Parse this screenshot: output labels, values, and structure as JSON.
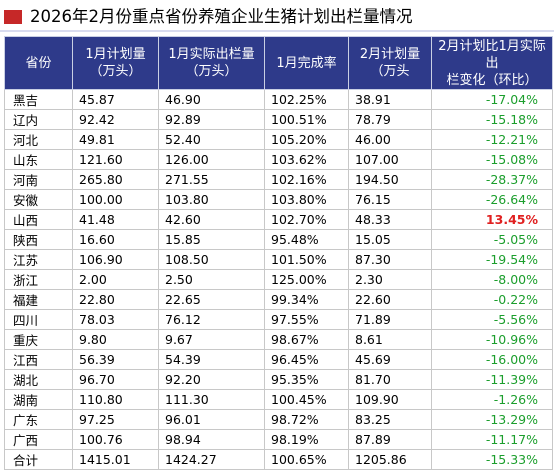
{
  "title": "2026年2月份重点省份养殖企业生猪计划出栏量情况",
  "colors": {
    "header_bg": "#2e3a8a",
    "negative": "#1b9e2c",
    "positive": "#e02020",
    "marker": "#c62828"
  },
  "headers": [
    [
      "省份"
    ],
    [
      "1月计划量",
      "（万头）"
    ],
    [
      "1月实际出栏量",
      "（万头）"
    ],
    [
      "1月完成率"
    ],
    [
      "2月计划量",
      "（万头"
    ],
    [
      "2月计划比1月实际出",
      "栏变化（环比）"
    ]
  ],
  "rows": [
    {
      "prov": "黑吉",
      "jan_plan": "45.87",
      "jan_actual": "46.90",
      "rate": "102.25%",
      "feb_plan": "38.91",
      "chg": "-17.04%"
    },
    {
      "prov": "辽内",
      "jan_plan": "92.42",
      "jan_actual": "92.89",
      "rate": "100.51%",
      "feb_plan": "78.79",
      "chg": "-15.18%"
    },
    {
      "prov": "河北",
      "jan_plan": "49.81",
      "jan_actual": "52.40",
      "rate": "105.20%",
      "feb_plan": "46.00",
      "chg": "-12.21%"
    },
    {
      "prov": "山东",
      "jan_plan": "121.60",
      "jan_actual": "126.00",
      "rate": "103.62%",
      "feb_plan": "107.00",
      "chg": "-15.08%"
    },
    {
      "prov": "河南",
      "jan_plan": "265.80",
      "jan_actual": "271.55",
      "rate": "102.16%",
      "feb_plan": "194.50",
      "chg": "-28.37%"
    },
    {
      "prov": "安徽",
      "jan_plan": "100.00",
      "jan_actual": "103.80",
      "rate": "103.80%",
      "feb_plan": "76.15",
      "chg": "-26.64%"
    },
    {
      "prov": "山西",
      "jan_plan": "41.48",
      "jan_actual": "42.60",
      "rate": "102.70%",
      "feb_plan": "48.33",
      "chg": "13.45%"
    },
    {
      "prov": "陕西",
      "jan_plan": "16.60",
      "jan_actual": "15.85",
      "rate": "95.48%",
      "feb_plan": "15.05",
      "chg": "-5.05%"
    },
    {
      "prov": "江苏",
      "jan_plan": "106.90",
      "jan_actual": "108.50",
      "rate": "101.50%",
      "feb_plan": "87.30",
      "chg": "-19.54%"
    },
    {
      "prov": "浙江",
      "jan_plan": "2.00",
      "jan_actual": "2.50",
      "rate": "125.00%",
      "feb_plan": "2.30",
      "chg": "-8.00%"
    },
    {
      "prov": "福建",
      "jan_plan": "22.80",
      "jan_actual": "22.65",
      "rate": "99.34%",
      "feb_plan": "22.60",
      "chg": "-0.22%"
    },
    {
      "prov": "四川",
      "jan_plan": "78.03",
      "jan_actual": "76.12",
      "rate": "97.55%",
      "feb_plan": "71.89",
      "chg": "-5.56%"
    },
    {
      "prov": "重庆",
      "jan_plan": "9.80",
      "jan_actual": "9.67",
      "rate": "98.67%",
      "feb_plan": "8.61",
      "chg": "-10.96%"
    },
    {
      "prov": "江西",
      "jan_plan": "56.39",
      "jan_actual": "54.39",
      "rate": "96.45%",
      "feb_plan": "45.69",
      "chg": "-16.00%"
    },
    {
      "prov": "湖北",
      "jan_plan": "96.70",
      "jan_actual": "92.20",
      "rate": "95.35%",
      "feb_plan": "81.70",
      "chg": "-11.39%"
    },
    {
      "prov": "湖南",
      "jan_plan": "110.80",
      "jan_actual": "111.30",
      "rate": "100.45%",
      "feb_plan": "109.90",
      "chg": "-1.26%"
    },
    {
      "prov": "广东",
      "jan_plan": "97.25",
      "jan_actual": "96.01",
      "rate": "98.72%",
      "feb_plan": "83.25",
      "chg": "-13.29%"
    },
    {
      "prov": "广西",
      "jan_plan": "100.76",
      "jan_actual": "98.94",
      "rate": "98.19%",
      "feb_plan": "87.89",
      "chg": "-11.17%"
    },
    {
      "prov": "合计",
      "jan_plan": "1415.01",
      "jan_actual": "1424.27",
      "rate": "100.65%",
      "feb_plan": "1205.86",
      "chg": "-15.33%"
    }
  ]
}
